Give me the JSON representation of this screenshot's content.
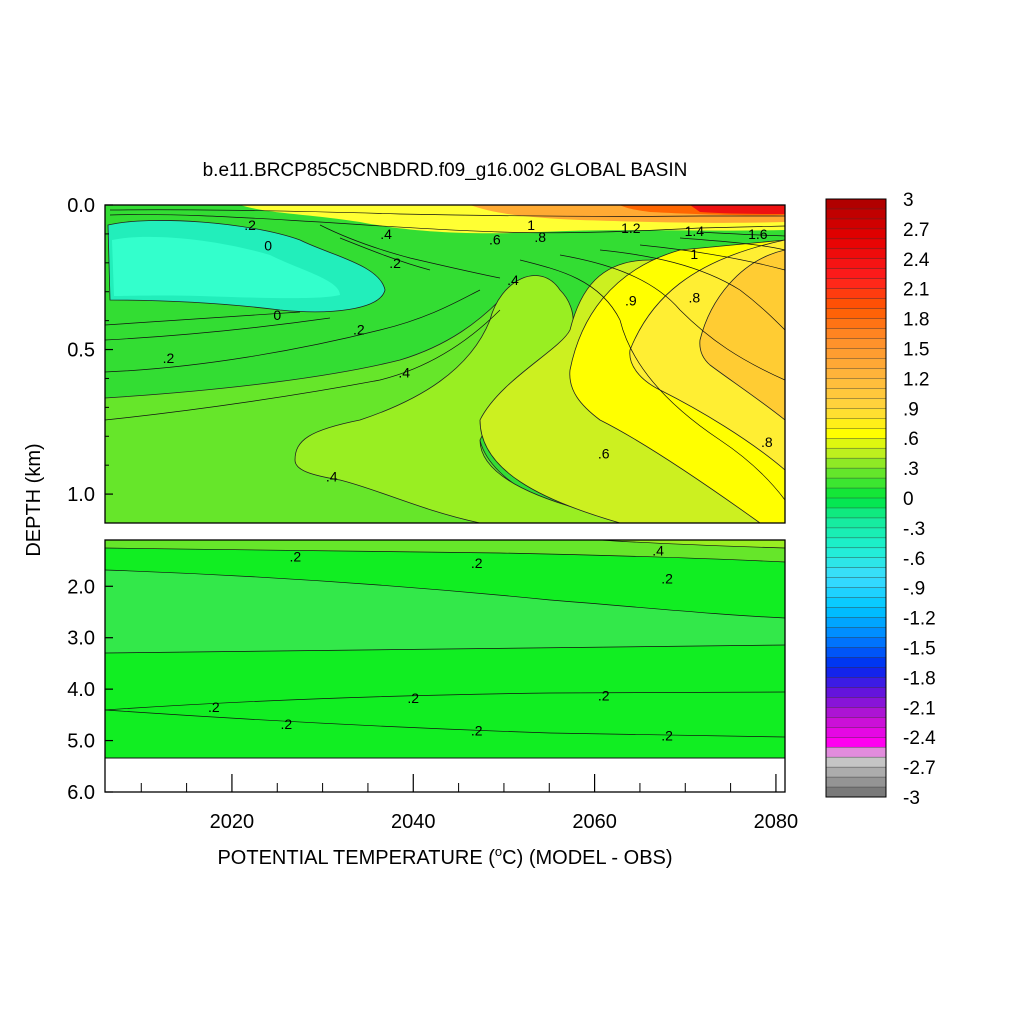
{
  "chart_data": {
    "type": "heatmap",
    "title": "b.e11.BRCP85C5CNBDRD.f09_g16.002 GLOBAL BASIN",
    "xlabel": "POTENTIAL TEMPERATURE (",
    "xlabel_unit": "o",
    "xlabel_suffix": "C) (MODEL - OBS)",
    "ylabel": "DEPTH (km)",
    "x_ticks": [
      "2020",
      "2040",
      "2060",
      "2080"
    ],
    "x_tick_values": [
      2020,
      2040,
      2060,
      2080
    ],
    "xlim": [
      2006,
      2081
    ],
    "upper_panel": {
      "ylim": [
        0.0,
        1.1
      ],
      "y_ticks": [
        "0.0",
        "0.5",
        "1.0"
      ],
      "y_tick_values": [
        0.0,
        0.5,
        1.0
      ]
    },
    "lower_panel": {
      "ylim": [
        1.1,
        6.0
      ],
      "y_ticks": [
        "2.0",
        "3.0",
        "4.0",
        "5.0",
        "6.0"
      ],
      "y_tick_values": [
        2.0,
        3.0,
        4.0,
        5.0,
        6.0
      ],
      "bottom_depth": 5.35
    },
    "colorbar": {
      "labels": [
        "3",
        "2.7",
        "2.4",
        "2.1",
        "1.8",
        "1.5",
        "1.2",
        ".9",
        ".6",
        ".3",
        "0",
        "-.3",
        "-.6",
        "-.9",
        "-1.2",
        "-1.5",
        "-1.8",
        "-2.1",
        "-2.4",
        "-2.7",
        "-3"
      ],
      "min": -3,
      "max": 3
    },
    "contour_labels": [
      {
        "text": ".2",
        "x": 2022,
        "y": 0.07
      },
      {
        "text": "0",
        "x": 2024,
        "y": 0.14
      },
      {
        "text": ".4",
        "x": 2037,
        "y": 0.1
      },
      {
        "text": ".2",
        "x": 2038,
        "y": 0.2
      },
      {
        "text": ".6",
        "x": 2049,
        "y": 0.12
      },
      {
        "text": "1",
        "x": 2053,
        "y": 0.07
      },
      {
        "text": ".8",
        "x": 2054,
        "y": 0.11
      },
      {
        "text": ".4",
        "x": 2051,
        "y": 0.26
      },
      {
        "text": "0",
        "x": 2025,
        "y": 0.38
      },
      {
        "text": ".2",
        "x": 2034,
        "y": 0.43
      },
      {
        "text": ".2",
        "x": 2013,
        "y": 0.53
      },
      {
        "text": ".4",
        "x": 2039,
        "y": 0.58
      },
      {
        "text": "1.2",
        "x": 2064,
        "y": 0.08
      },
      {
        "text": "1.4",
        "x": 2071,
        "y": 0.09
      },
      {
        "text": "1.6",
        "x": 2078,
        "y": 0.1
      },
      {
        "text": "1",
        "x": 2071,
        "y": 0.17
      },
      {
        "text": ".9",
        "x": 2064,
        "y": 0.33
      },
      {
        "text": ".8",
        "x": 2071,
        "y": 0.32
      },
      {
        "text": ".8",
        "x": 2079,
        "y": 0.82
      },
      {
        "text": ".6",
        "x": 2061,
        "y": 0.86
      },
      {
        "text": ".4",
        "x": 2031,
        "y": 0.94
      },
      {
        "text": ".2",
        "x": 2027,
        "y": 1.42
      },
      {
        "text": ".2",
        "x": 2047,
        "y": 1.55
      },
      {
        "text": ".4",
        "x": 2067,
        "y": 1.3
      },
      {
        "text": ".2",
        "x": 2068,
        "y": 1.85
      },
      {
        "text": ".2",
        "x": 2018,
        "y": 4.35
      },
      {
        "text": ".2",
        "x": 2040,
        "y": 4.17
      },
      {
        "text": ".2",
        "x": 2061,
        "y": 4.12
      },
      {
        "text": ".2",
        "x": 2026,
        "y": 4.68
      },
      {
        "text": ".2",
        "x": 2047,
        "y": 4.8
      },
      {
        "text": ".2",
        "x": 2068,
        "y": 4.9
      }
    ]
  }
}
